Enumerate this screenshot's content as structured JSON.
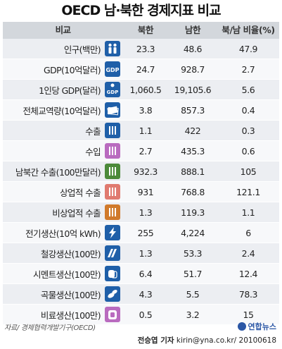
{
  "title": "OECD 남·북한 경제지표 비교",
  "colors": {
    "header_bg": "#d3d7dc",
    "row_odd": "#eceef2",
    "row_even": "#f7f8fa",
    "icon_blue": "#1f5fa8",
    "icon_purple": "#b96bbf",
    "icon_green": "#4c8a3a",
    "icon_salmon": "#e07a6f",
    "icon_orange": "#d07a2b"
  },
  "headers": {
    "label": "비교",
    "nk": "북한",
    "sk": "남한",
    "ratio": "북/남 비율(%)"
  },
  "chart_data": {
    "type": "table",
    "title": "OECD 남·북한 경제지표 비교",
    "columns": [
      "비교",
      "북한",
      "남한",
      "북/남 비율(%)"
    ],
    "rows": [
      {
        "label": "인구(백만)",
        "icon": "people-icon",
        "nk": "23.3",
        "sk": "48.6",
        "ratio": "47.9"
      },
      {
        "label": "GDP(10억달러)",
        "icon": "gdp-icon",
        "nk": "24.7",
        "sk": "928.7",
        "ratio": "2.7"
      },
      {
        "label": "1인당 GDP(달러)",
        "icon": "gdp-per-capita-icon",
        "nk": "1,060.5",
        "sk": "19,105.6",
        "ratio": "5.6"
      },
      {
        "label": "전체교역량(10억달러)",
        "icon": "trade-volume-icon",
        "nk": "3.8",
        "sk": "857.3",
        "ratio": "0.4"
      },
      {
        "label": "수출",
        "icon": "export-icon",
        "nk": "1.1",
        "sk": "422",
        "ratio": "0.3"
      },
      {
        "label": "수입",
        "icon": "import-icon",
        "nk": "2.7",
        "sk": "435.3",
        "ratio": "0.6"
      },
      {
        "label": "남북간 수출(100만달러)",
        "icon": "inter-korean-export-icon",
        "nk": "932.3",
        "sk": "888.1",
        "ratio": "105"
      },
      {
        "label": "상업적 수출",
        "icon": "commercial-export-icon",
        "nk": "931",
        "sk": "768.8",
        "ratio": "121.1"
      },
      {
        "label": "비상업적 수출",
        "icon": "non-commercial-export-icon",
        "nk": "1.3",
        "sk": "119.3",
        "ratio": "1.1"
      },
      {
        "label": "전기생산(10억 kWh)",
        "icon": "lightning-icon",
        "nk": "255",
        "sk": "4,224",
        "ratio": "6"
      },
      {
        "label": "철강생산(100만)",
        "icon": "steel-icon",
        "nk": "1.3",
        "sk": "53.3",
        "ratio": "2.4"
      },
      {
        "label": "시멘트생산(100만)",
        "icon": "cement-icon",
        "nk": "6.4",
        "sk": "51.7",
        "ratio": "12.4"
      },
      {
        "label": "곡물생산(100만)",
        "icon": "grain-icon",
        "nk": "4.3",
        "sk": "5.5",
        "ratio": "78.3"
      },
      {
        "label": "비료생산(100만)",
        "icon": "fertilizer-icon",
        "nk": "0.5",
        "sk": "3.2",
        "ratio": "15"
      }
    ]
  },
  "footer": {
    "source": "자료/ 경제협력개발기구(OECD)",
    "logo": "연합뉴스",
    "reporter": "전승엽 기자",
    "contact": "kirin@yna.co.kr/ 20100618"
  }
}
